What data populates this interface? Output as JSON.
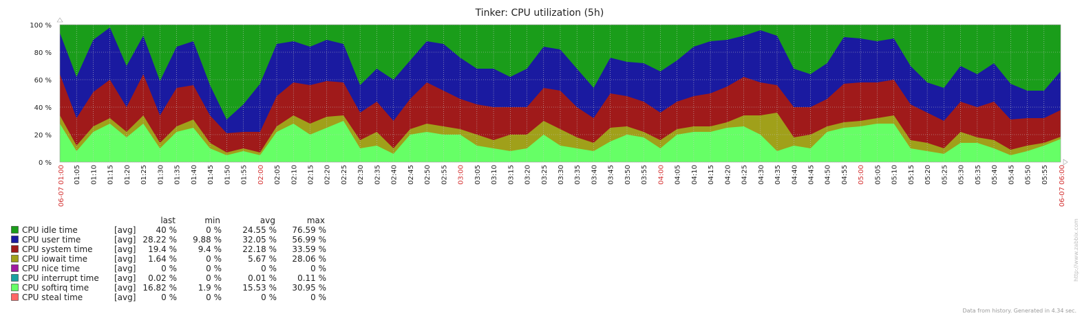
{
  "chart_data": {
    "type": "area",
    "stacked": true,
    "title": "Tinker: CPU utilization (5h)",
    "y_ticks": [
      "0 %",
      "20 %",
      "40 %",
      "60 %",
      "80 %",
      "100 %"
    ],
    "ylim": [
      0,
      100
    ],
    "x_start_label": "06-07 01:00",
    "x_end_label": "06-07 06:00",
    "x_ticks": [
      "01:05",
      "01:10",
      "01:15",
      "01:20",
      "01:25",
      "01:30",
      "01:35",
      "01:40",
      "01:45",
      "01:50",
      "01:55",
      "02:00",
      "02:05",
      "02:10",
      "02:15",
      "02:20",
      "02:25",
      "02:30",
      "02:35",
      "02:40",
      "02:45",
      "02:50",
      "02:55",
      "03:00",
      "03:05",
      "03:10",
      "03:15",
      "03:20",
      "03:25",
      "03:30",
      "03:35",
      "03:40",
      "03:45",
      "03:50",
      "03:55",
      "04:00",
      "04:05",
      "04:10",
      "04:15",
      "04:20",
      "04:25",
      "04:30",
      "04:35",
      "04:40",
      "04:45",
      "04:50",
      "04:55",
      "05:00",
      "05:05",
      "05:10",
      "05:15",
      "05:20",
      "05:25",
      "05:30",
      "05:35",
      "05:40",
      "05:45",
      "05:50",
      "05:55"
    ],
    "x_major_ticks": [
      "02:00",
      "03:00",
      "04:00",
      "05:00"
    ],
    "grid": true,
    "legend_placement": "bottom-left",
    "legend_headers": [
      "last",
      "min",
      "avg",
      "max"
    ],
    "series": [
      {
        "name": "CPU idle time",
        "func": "[avg]",
        "color": "#1a9d1a",
        "last": "40 %",
        "min": "0 %",
        "avg": "24.55 %",
        "max": "76.59 %"
      },
      {
        "name": "CPU user time",
        "func": "[avg]",
        "color": "#1a1aa0",
        "last": "28.22 %",
        "min": "9.88 %",
        "avg": "32.05 %",
        "max": "56.99 %"
      },
      {
        "name": "CPU system time",
        "func": "[avg]",
        "color": "#a01a1a",
        "last": "19.4 %",
        "min": "9.4 %",
        "avg": "22.18 %",
        "max": "33.59 %"
      },
      {
        "name": "CPU iowait time",
        "func": "[avg]",
        "color": "#a0a01a",
        "last": "1.64 %",
        "min": "0 %",
        "avg": "5.67 %",
        "max": "28.06 %"
      },
      {
        "name": "CPU nice time",
        "func": "[avg]",
        "color": "#a01aa0",
        "last": "0 %",
        "min": "0 %",
        "avg": "0 %",
        "max": "0 %"
      },
      {
        "name": "CPU interrupt time",
        "func": "[avg]",
        "color": "#1aa0a0",
        "last": "0.02 %",
        "min": "0 %",
        "avg": "0.01 %",
        "max": "0.11 %"
      },
      {
        "name": "CPU softirq time",
        "func": "[avg]",
        "color": "#66ff66",
        "last": "16.82 %",
        "min": "1.9 %",
        "avg": "15.53 %",
        "max": "30.95 %"
      },
      {
        "name": "CPU steal time",
        "func": "[avg]",
        "color": "#ff6666",
        "last": "0 %",
        "min": "0 %",
        "avg": "0 %",
        "max": "0 %"
      }
    ],
    "profile": {
      "time_min": [
        0,
        5,
        10,
        15,
        20,
        25,
        30,
        35,
        40,
        45,
        50,
        55,
        60,
        65,
        70,
        75,
        80,
        85,
        90,
        95,
        100,
        105,
        110,
        115,
        120,
        125,
        130,
        135,
        140,
        145,
        150,
        155,
        160,
        165,
        170,
        175,
        180,
        185,
        190,
        195,
        200,
        205,
        210,
        215,
        220,
        225,
        230,
        235,
        240,
        245,
        250,
        255,
        260,
        265,
        270,
        275,
        280,
        285,
        290,
        295,
        300
      ],
      "softirq": [
        28,
        8,
        22,
        28,
        18,
        28,
        10,
        22,
        25,
        10,
        5,
        8,
        5,
        22,
        28,
        20,
        25,
        30,
        10,
        12,
        6,
        20,
        22,
        20,
        20,
        12,
        10,
        8,
        10,
        20,
        12,
        10,
        8,
        15,
        20,
        18,
        10,
        20,
        22,
        22,
        25,
        26,
        20,
        8,
        12,
        10,
        22,
        25,
        26,
        28,
        28,
        10,
        8,
        6,
        14,
        14,
        10,
        5,
        8,
        12,
        16.82
      ],
      "iowait": [
        6,
        4,
        4,
        4,
        4,
        6,
        4,
        4,
        6,
        4,
        2,
        2,
        2,
        4,
        6,
        8,
        8,
        4,
        6,
        10,
        4,
        4,
        6,
        6,
        4,
        8,
        6,
        12,
        10,
        10,
        12,
        8,
        6,
        10,
        6,
        4,
        6,
        4,
        4,
        4,
        4,
        8,
        14,
        28,
        6,
        10,
        4,
        4,
        4,
        4,
        6,
        6,
        6,
        4,
        8,
        4,
        6,
        4,
        4,
        2,
        1.64
      ],
      "system": [
        30,
        20,
        25,
        28,
        18,
        30,
        20,
        28,
        25,
        20,
        14,
        12,
        15,
        22,
        24,
        28,
        26,
        24,
        20,
        22,
        20,
        22,
        30,
        26,
        22,
        22,
        24,
        20,
        20,
        24,
        28,
        22,
        18,
        25,
        22,
        22,
        20,
        20,
        22,
        24,
        26,
        28,
        24,
        20,
        22,
        20,
        20,
        28,
        28,
        26,
        26,
        26,
        22,
        20,
        22,
        22,
        28,
        22,
        20,
        18,
        19.4
      ],
      "user": [
        30,
        30,
        38,
        38,
        30,
        28,
        25,
        30,
        32,
        22,
        10,
        20,
        35,
        38,
        30,
        28,
        30,
        28,
        20,
        24,
        30,
        28,
        30,
        34,
        30,
        26,
        28,
        22,
        28,
        30,
        30,
        28,
        22,
        26,
        25,
        28,
        30,
        30,
        36,
        38,
        34,
        30,
        38,
        36,
        28,
        24,
        26,
        34,
        32,
        30,
        30,
        28,
        22,
        24,
        26,
        24,
        28,
        26,
        20,
        20,
        28.22
      ]
    }
  }
}
